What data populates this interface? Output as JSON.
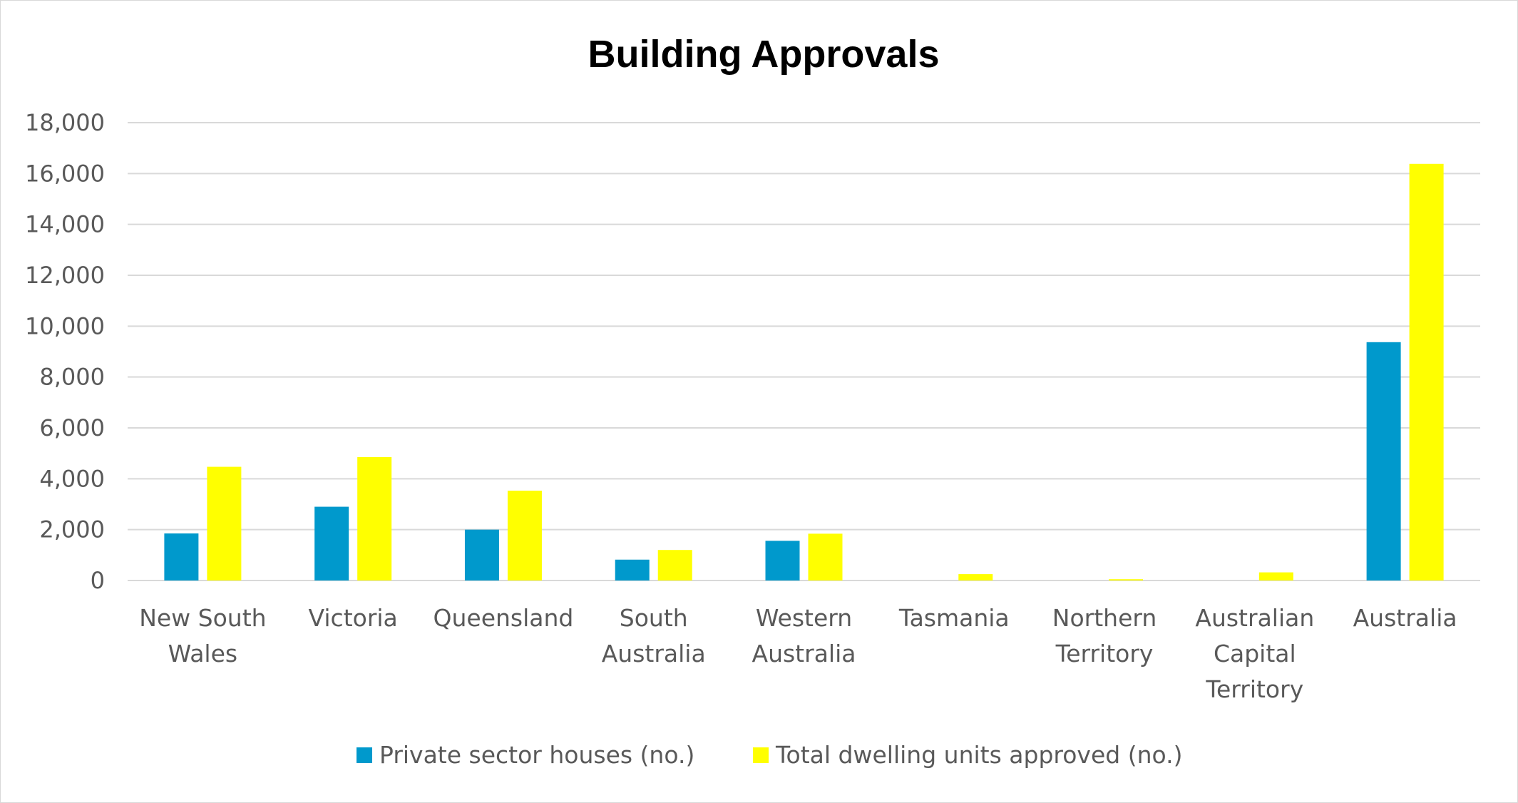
{
  "chart_data": {
    "type": "bar",
    "title": "Building Approvals",
    "xlabel": "",
    "ylabel": "",
    "ylim": [
      0,
      18000
    ],
    "yticks": [
      0,
      2000,
      4000,
      6000,
      8000,
      10000,
      12000,
      14000,
      16000,
      18000
    ],
    "ytick_labels": [
      "0",
      "2,000",
      "4,000",
      "6,000",
      "8,000",
      "10,000",
      "12,000",
      "14,000",
      "16,000",
      "18,000"
    ],
    "grid": true,
    "legend_position": "bottom",
    "categories": [
      [
        "New South",
        "Wales"
      ],
      [
        "Victoria"
      ],
      [
        "Queensland"
      ],
      [
        "South",
        "Australia"
      ],
      [
        "Western",
        "Australia"
      ],
      [
        "Tasmania"
      ],
      [
        "Northern",
        "Territory"
      ],
      [
        "Australian",
        "Capital",
        "Territory"
      ],
      [
        "Australia"
      ]
    ],
    "series": [
      {
        "name": "Private sector houses (no.)",
        "color": "#0099cc",
        "values": [
          1850,
          2900,
          2000,
          820,
          1560,
          0,
          0,
          0,
          9370
        ]
      },
      {
        "name": "Total dwelling units approved (no.)",
        "color": "#ffff00",
        "values": [
          4470,
          4850,
          3530,
          1200,
          1840,
          250,
          50,
          320,
          16380
        ]
      }
    ],
    "colors": {
      "grid": "#d9d9d9",
      "text": "#595959",
      "title": "#000000"
    }
  }
}
